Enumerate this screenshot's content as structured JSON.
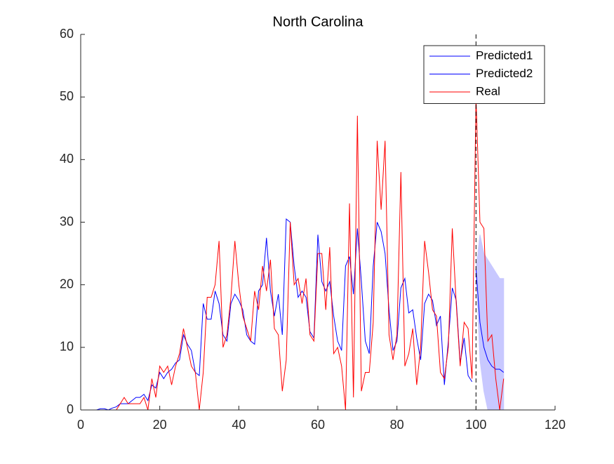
{
  "chart_data": {
    "type": "line",
    "title": "North Carolina",
    "xlim": [
      0,
      120
    ],
    "xticks": [
      0,
      20,
      40,
      60,
      80,
      100,
      120
    ],
    "ylim": [
      0,
      60
    ],
    "yticks": [
      0,
      10,
      20,
      30,
      40,
      50,
      60
    ],
    "legend": "upper-right",
    "vline": 100,
    "series": [
      {
        "name": "Predicted1",
        "color": "#0000ff",
        "x": [
          1,
          2,
          3,
          4,
          5,
          6,
          7,
          8,
          9,
          10,
          11,
          12,
          13,
          14,
          15,
          16,
          17,
          18,
          19,
          20,
          21,
          22,
          23,
          24,
          25,
          26,
          27,
          28,
          29,
          30,
          31,
          32,
          33,
          34,
          35,
          36,
          37,
          38,
          39,
          40,
          41,
          42,
          43,
          44,
          45,
          46,
          47,
          48,
          49,
          50,
          51,
          52,
          53,
          54,
          55,
          56,
          57,
          58,
          59,
          60,
          61,
          62,
          63,
          64,
          65,
          66,
          67,
          68,
          69,
          70,
          71,
          72,
          73,
          74,
          75,
          76,
          77,
          78,
          79,
          80,
          81,
          82,
          83,
          84,
          85,
          86,
          87,
          88,
          89,
          90,
          91,
          92,
          93,
          94,
          95,
          96,
          97,
          98,
          99
        ],
        "values": [
          0,
          0,
          0,
          0,
          0.2,
          0.2,
          0,
          0.3,
          0.5,
          1,
          1,
          1,
          1.5,
          2,
          2,
          2.5,
          1.5,
          4,
          3.5,
          6,
          5,
          6,
          6.5,
          7.5,
          8,
          12,
          10.5,
          9.5,
          6,
          5.5,
          17,
          14.5,
          14.5,
          19,
          17,
          12,
          11,
          17,
          18.5,
          17.5,
          16,
          12,
          11,
          10.5,
          19,
          20,
          27.5,
          19,
          15,
          18.5,
          12,
          30.5,
          30,
          23,
          18,
          19,
          18,
          12.5,
          11.5,
          28,
          20.5,
          19,
          20.5,
          15,
          11,
          9.5,
          23,
          24.5,
          18.5,
          29,
          20.5,
          11,
          9,
          23,
          30,
          28.5,
          25,
          16,
          9.5,
          11,
          19.5,
          21,
          15.5,
          16,
          11.5,
          8,
          17,
          18.5,
          17.5,
          13.5,
          15,
          4,
          11,
          19.5,
          17.5,
          7.5,
          11.5,
          5.5,
          4.5
        ]
      },
      {
        "name": "Predicted2",
        "color": "#0000ff",
        "band_color": "#c8c8ff",
        "x": [
          100,
          101,
          102,
          103,
          104,
          105,
          106,
          107
        ],
        "values": [
          22.5,
          14,
          10,
          8,
          7,
          6.5,
          6.5,
          6
        ],
        "upper": [
          22.5,
          28,
          25,
          24,
          23,
          22,
          21,
          21
        ],
        "lower": [
          22.5,
          8,
          3,
          0,
          0,
          0,
          0,
          0
        ]
      },
      {
        "name": "Real",
        "color": "#ff0000",
        "x": [
          1,
          2,
          3,
          4,
          5,
          6,
          7,
          8,
          9,
          10,
          11,
          12,
          13,
          14,
          15,
          16,
          17,
          18,
          19,
          20,
          21,
          22,
          23,
          24,
          25,
          26,
          27,
          28,
          29,
          30,
          31,
          32,
          33,
          34,
          35,
          36,
          37,
          38,
          39,
          40,
          41,
          42,
          43,
          44,
          45,
          46,
          47,
          48,
          49,
          50,
          51,
          52,
          53,
          54,
          55,
          56,
          57,
          58,
          59,
          60,
          61,
          62,
          63,
          64,
          65,
          66,
          67,
          68,
          69,
          70,
          71,
          72,
          73,
          74,
          75,
          76,
          77,
          78,
          79,
          80,
          81,
          82,
          83,
          84,
          85,
          86,
          87,
          88,
          89,
          90,
          91,
          92,
          93,
          94,
          95,
          96,
          97,
          98,
          99,
          100,
          101,
          102,
          103,
          104,
          105,
          106,
          107
        ],
        "values": [
          0,
          0,
          0,
          0,
          0,
          0,
          0,
          0,
          0,
          1,
          2,
          1,
          1,
          1,
          1,
          2,
          0,
          5,
          2,
          7,
          6,
          7,
          4,
          7,
          9,
          13,
          10,
          7,
          6,
          0,
          6,
          18,
          18,
          20,
          27,
          10,
          12,
          18,
          27,
          20,
          15,
          13,
          11,
          19,
          16,
          23,
          19,
          24,
          13,
          12,
          3,
          8,
          30,
          20,
          21,
          17,
          21,
          12,
          11,
          25,
          25,
          16,
          26,
          9,
          10,
          7,
          0,
          33,
          2,
          47,
          3,
          6,
          6,
          14,
          43,
          32,
          43,
          12,
          8,
          12,
          38,
          7,
          9,
          13,
          4,
          10,
          27,
          22,
          16,
          15,
          6,
          5,
          10,
          29,
          17,
          7,
          14,
          13,
          5,
          50,
          30,
          29,
          11,
          12,
          5,
          0,
          5
        ]
      }
    ]
  }
}
